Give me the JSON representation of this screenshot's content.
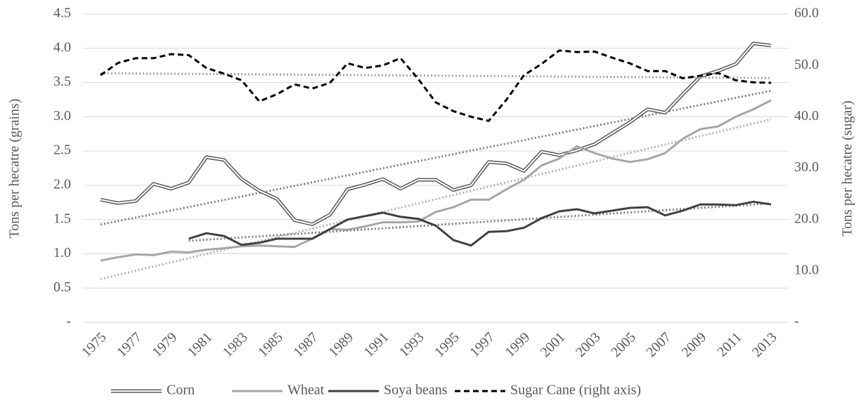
{
  "chart_data": {
    "type": "line",
    "y_label": "Tons per hecatre (grains)",
    "y2_label": "Tons per hecatre (sugar)",
    "x": [
      1975,
      1976,
      1977,
      1978,
      1979,
      1980,
      1981,
      1982,
      1983,
      1984,
      1985,
      1986,
      1987,
      1988,
      1989,
      1990,
      1991,
      1992,
      1993,
      1994,
      1995,
      1996,
      1997,
      1998,
      1999,
      2000,
      2001,
      2002,
      2003,
      2004,
      2005,
      2006,
      2007,
      2008,
      2009,
      2010,
      2011,
      2012,
      2013
    ],
    "xlim": [
      1975,
      2013
    ],
    "xticks": [
      1975,
      1977,
      1979,
      1981,
      1983,
      1985,
      1987,
      1989,
      1991,
      1993,
      1995,
      1997,
      1999,
      2001,
      2003,
      2005,
      2007,
      2009,
      2011,
      2013
    ],
    "ylim": [
      0,
      4.5
    ],
    "yticks": [
      {
        "value": 0,
        "label": "-"
      },
      0.5,
      {
        "value": 1,
        "label": "1.0"
      },
      1.5,
      {
        "value": 2,
        "label": "2.0"
      },
      2.5,
      {
        "value": 3,
        "label": "3.0"
      },
      3.5,
      {
        "value": 4,
        "label": "4.0"
      },
      4.5
    ],
    "y2lim": [
      0,
      60
    ],
    "y2ticks": [
      {
        "value": 0,
        "label": "-"
      },
      {
        "value": 10,
        "label": "10.0"
      },
      {
        "value": 20,
        "label": "20.0"
      },
      {
        "value": 30,
        "label": "30.0"
      },
      {
        "value": 40,
        "label": "40.0"
      },
      {
        "value": 50,
        "label": "50.0"
      },
      {
        "value": 60,
        "label": "60.0"
      }
    ],
    "grid": true,
    "trendlines": true,
    "legend": "bottom",
    "series": [
      {
        "name": "Corn",
        "color": "#ffffff",
        "outline": "#595959",
        "trend_color": "#7f7f7f",
        "values": [
          1.79,
          1.74,
          1.77,
          2.02,
          1.95,
          2.04,
          2.41,
          2.37,
          2.09,
          1.92,
          1.8,
          1.49,
          1.43,
          1.57,
          1.94,
          2.01,
          2.09,
          1.95,
          2.08,
          2.08,
          1.93,
          2.0,
          2.34,
          2.32,
          2.21,
          2.49,
          2.44,
          2.51,
          2.6,
          2.76,
          2.92,
          3.11,
          3.06,
          3.33,
          3.59,
          3.67,
          3.77,
          4.07,
          4.04
        ]
      },
      {
        "name": "Wheat",
        "color": "#a6a6a6",
        "trend_color": "#b3b3b3",
        "values": [
          0.9,
          0.95,
          0.99,
          0.98,
          1.03,
          1.02,
          1.06,
          1.08,
          1.11,
          1.12,
          1.11,
          1.1,
          1.22,
          1.36,
          1.35,
          1.4,
          1.46,
          1.46,
          1.47,
          1.61,
          1.68,
          1.79,
          1.79,
          1.94,
          2.08,
          2.29,
          2.39,
          2.57,
          2.47,
          2.39,
          2.34,
          2.38,
          2.47,
          2.68,
          2.82,
          2.86,
          3.0,
          3.11,
          3.24
        ]
      },
      {
        "name": "Soya beans",
        "color": "#404040",
        "trend_color": "#7f7f7f",
        "values": [
          null,
          null,
          null,
          null,
          null,
          1.22,
          1.3,
          1.26,
          1.13,
          1.16,
          1.22,
          1.22,
          1.22,
          1.36,
          1.5,
          1.55,
          1.6,
          1.54,
          1.51,
          1.41,
          1.2,
          1.12,
          1.32,
          1.33,
          1.38,
          1.52,
          1.62,
          1.65,
          1.59,
          1.63,
          1.67,
          1.68,
          1.56,
          1.63,
          1.72,
          1.72,
          1.71,
          1.76,
          1.72
        ]
      },
      {
        "name": "Sugar Cane (right axis)",
        "color": "#000000",
        "dashed": true,
        "axis": "y2",
        "trend_color": "#a6a6a6",
        "values": [
          48.1,
          50.5,
          51.4,
          51.4,
          52.2,
          52.0,
          49.5,
          48.4,
          47.1,
          43.0,
          44.4,
          46.3,
          45.5,
          46.6,
          50.4,
          49.5,
          50.0,
          51.4,
          47.4,
          42.8,
          41.1,
          40.0,
          39.2,
          43.3,
          48.1,
          50.3,
          52.9,
          52.6,
          52.7,
          51.5,
          50.4,
          48.9,
          48.9,
          47.5,
          48.0,
          48.5,
          47.1,
          46.7,
          46.6
        ]
      }
    ]
  }
}
